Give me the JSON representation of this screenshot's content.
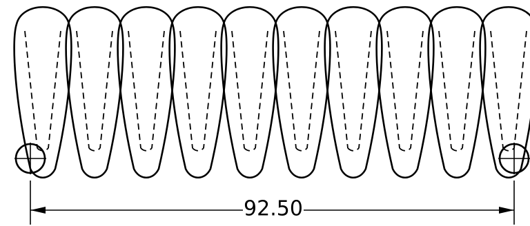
{
  "dimension": {
    "label": "92.50"
  }
}
